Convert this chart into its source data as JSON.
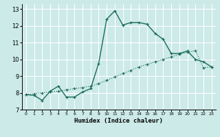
{
  "xlabel": "Humidex (Indice chaleur)",
  "bg_color": "#cceae7",
  "grid_color": "#ffffff",
  "line_color": "#1a6b5a",
  "xlim": [
    -0.5,
    23.5
  ],
  "ylim": [
    7,
    13.3
  ],
  "yticks": [
    7,
    8,
    9,
    10,
    11,
    12,
    13
  ],
  "xticks": [
    0,
    1,
    2,
    3,
    4,
    5,
    6,
    7,
    8,
    9,
    10,
    11,
    12,
    13,
    14,
    15,
    16,
    17,
    18,
    19,
    20,
    21,
    22,
    23
  ],
  "curve1_x": [
    0,
    1,
    2,
    3,
    4,
    5,
    6,
    7,
    8,
    9,
    10,
    11,
    12,
    13,
    14,
    15,
    16,
    17,
    18,
    19,
    20,
    21,
    22,
    23
  ],
  "curve1_y": [
    7.9,
    7.85,
    7.55,
    8.1,
    8.4,
    7.75,
    7.75,
    8.05,
    8.25,
    9.75,
    12.4,
    12.9,
    12.05,
    12.2,
    12.2,
    12.1,
    11.55,
    11.2,
    10.35,
    10.35,
    10.5,
    10.0,
    9.85,
    9.55
  ],
  "curve2_x": [
    0,
    1,
    2,
    3,
    4,
    5,
    6,
    7,
    8,
    9,
    10,
    11,
    12,
    13,
    14,
    15,
    16,
    17,
    18,
    19,
    20,
    21,
    22,
    23
  ],
  "curve2_y": [
    7.9,
    7.95,
    8.0,
    8.05,
    8.1,
    8.18,
    8.25,
    8.32,
    8.4,
    8.55,
    8.75,
    8.95,
    9.15,
    9.35,
    9.55,
    9.7,
    9.85,
    10.0,
    10.15,
    10.3,
    10.42,
    10.52,
    9.5,
    9.55
  ]
}
